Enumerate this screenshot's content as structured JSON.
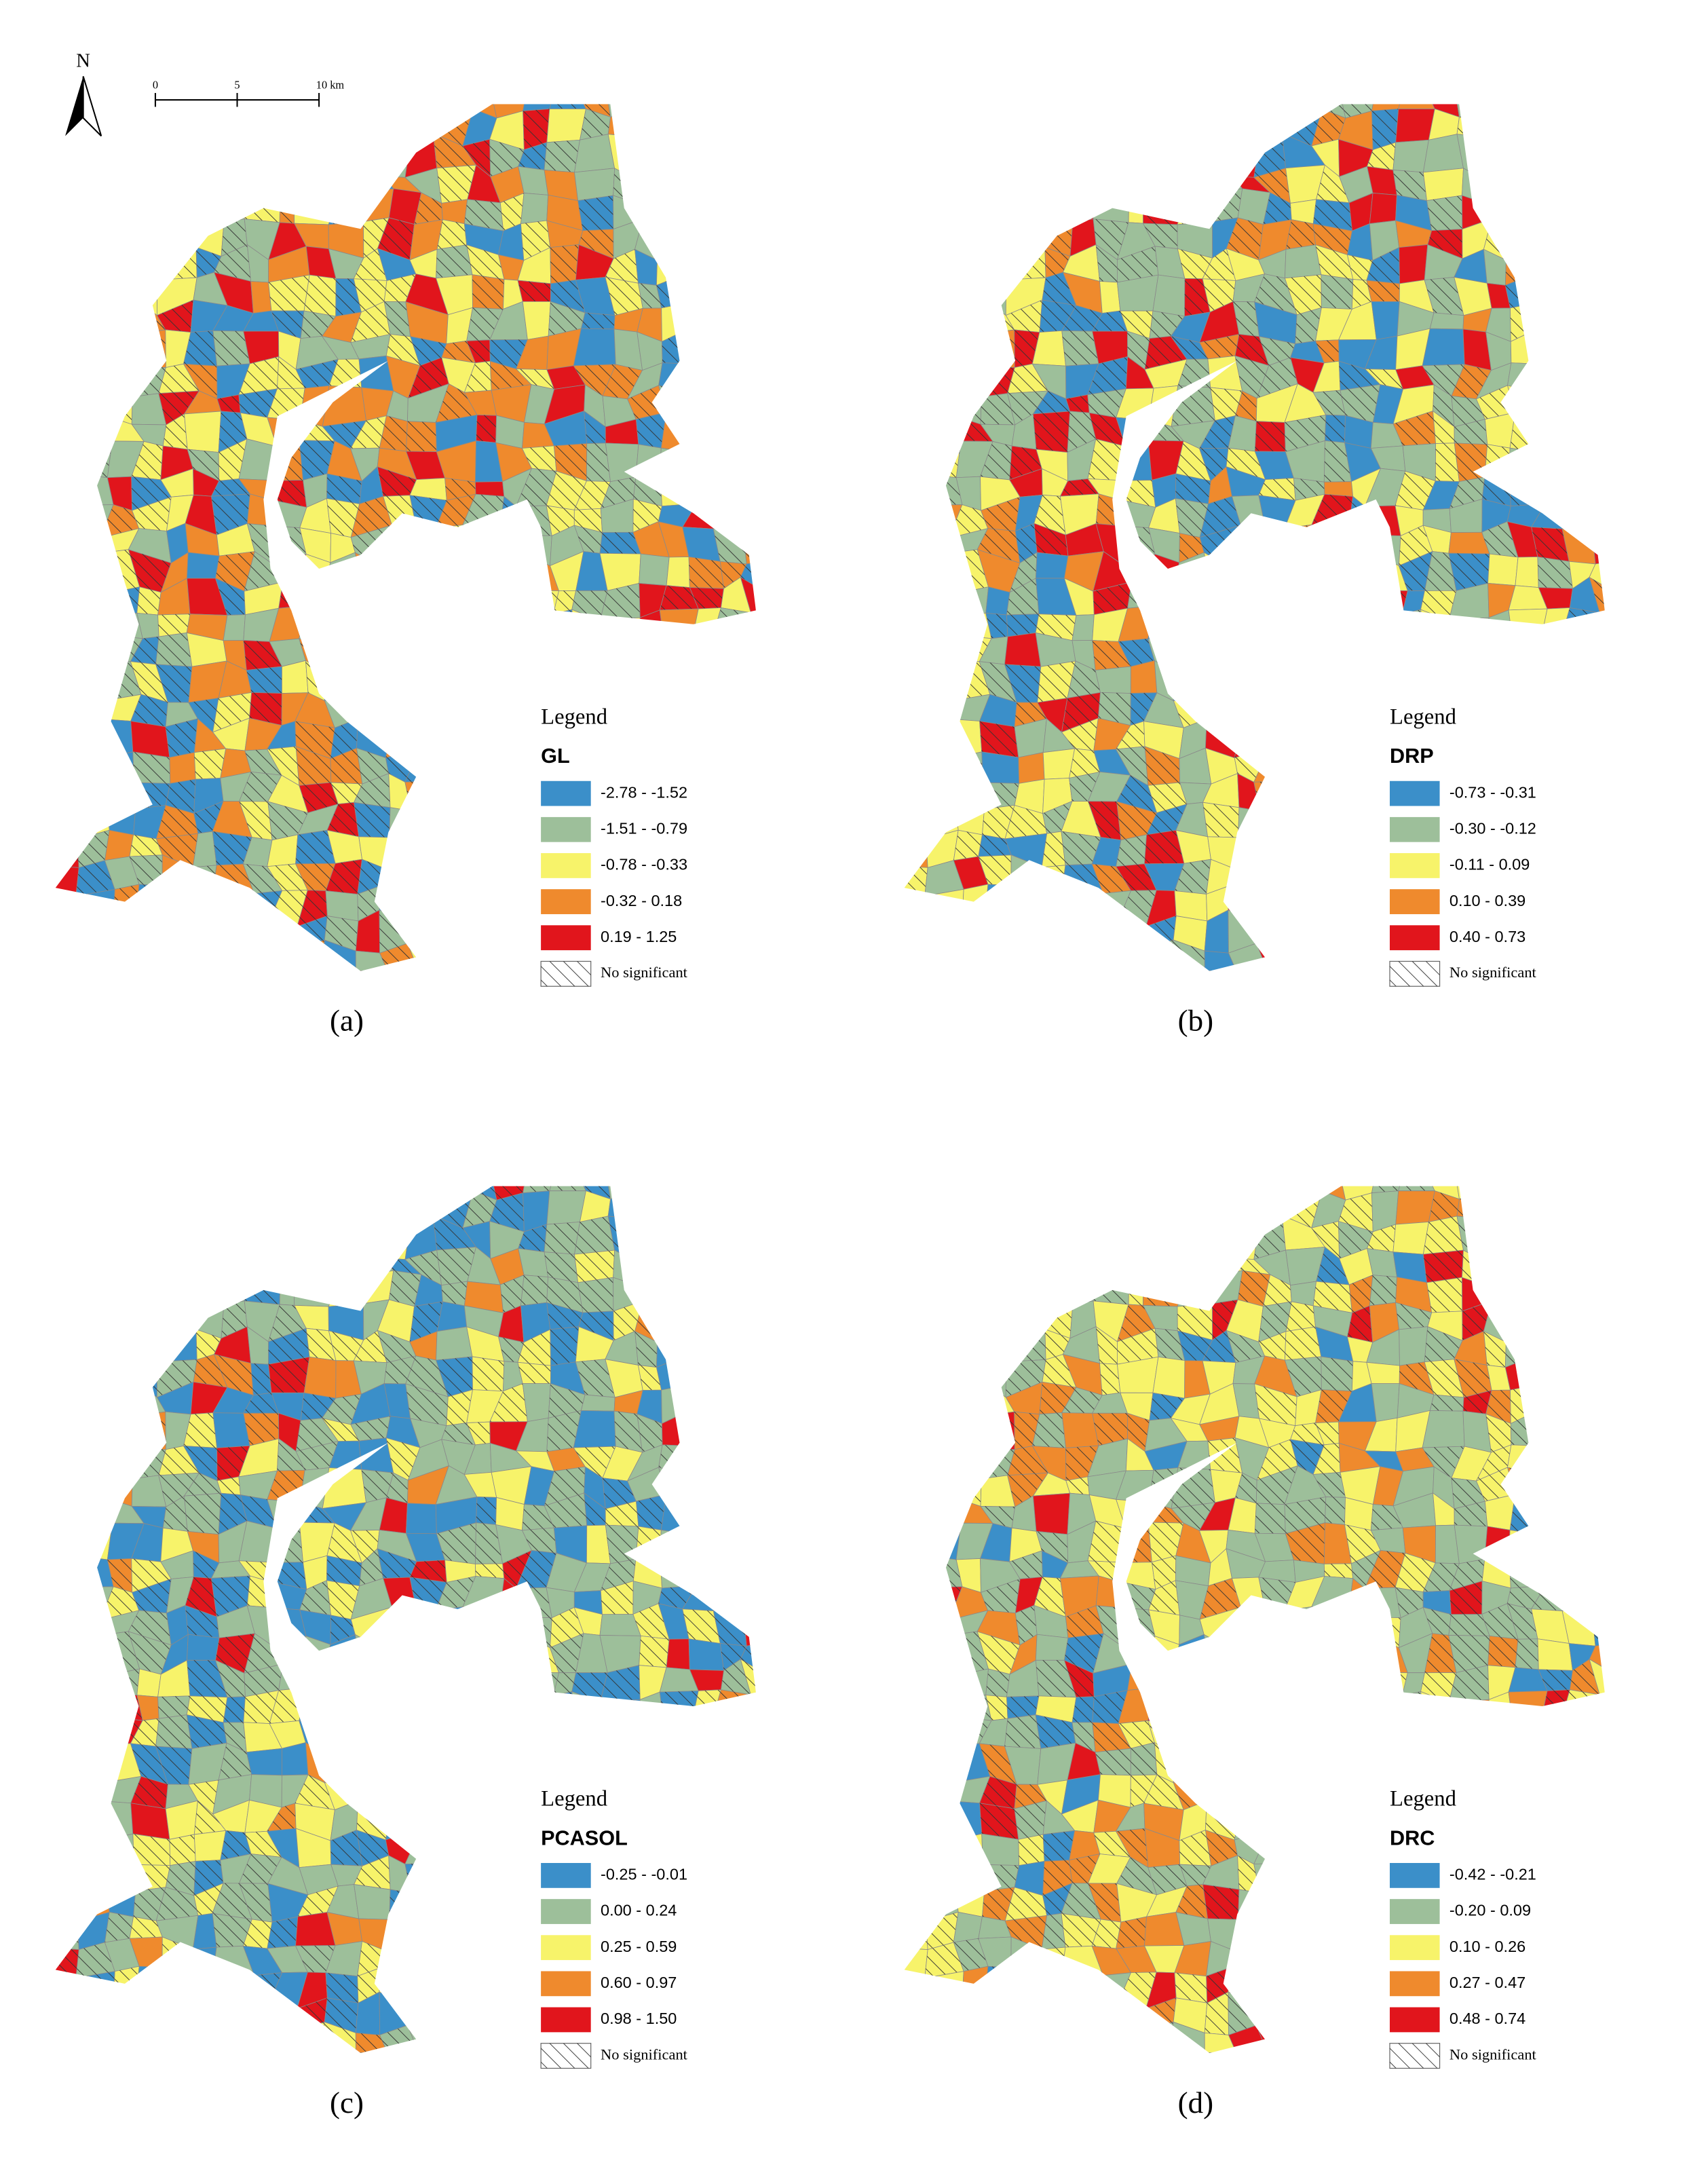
{
  "north": "N",
  "scale_bar": [
    "0",
    "5",
    "10 km"
  ],
  "panels": [
    {
      "caption": "(a)",
      "legend_title": "Legend",
      "variable": "GL",
      "no_significant": "No significant",
      "classes": [
        {
          "label": "-2.78 - -1.52",
          "color": "#3b8fc9"
        },
        {
          "label": "-1.51 - -0.79",
          "color": "#9dbf9a"
        },
        {
          "label": "-0.78 - -0.33",
          "color": "#f7f36a"
        },
        {
          "label": "-0.32 - 0.18",
          "color": "#ef8a2d"
        },
        {
          "label": "0.19 - 1.25",
          "color": "#e1151c"
        }
      ]
    },
    {
      "caption": "(b)",
      "legend_title": "Legend",
      "variable": "DRP",
      "no_significant": "No significant",
      "classes": [
        {
          "label": "-0.73 - -0.31",
          "color": "#3b8fc9"
        },
        {
          "label": "-0.30 - -0.12",
          "color": "#9dbf9a"
        },
        {
          "label": "-0.11 - 0.09",
          "color": "#f7f36a"
        },
        {
          "label": "0.10 - 0.39",
          "color": "#ef8a2d"
        },
        {
          "label": "0.40 - 0.73",
          "color": "#e1151c"
        }
      ]
    },
    {
      "caption": "(c)",
      "legend_title": "Legend",
      "variable": "PCASOL",
      "no_significant": "No significant",
      "classes": [
        {
          "label": "-0.25 - -0.01",
          "color": "#3b8fc9"
        },
        {
          "label": "0.00 - 0.24",
          "color": "#9dbf9a"
        },
        {
          "label": "0.25 - 0.59",
          "color": "#f7f36a"
        },
        {
          "label": "0.60 - 0.97",
          "color": "#ef8a2d"
        },
        {
          "label": "0.98 - 1.50",
          "color": "#e1151c"
        }
      ]
    },
    {
      "caption": "(d)",
      "legend_title": "Legend",
      "variable": "DRC",
      "no_significant": "No significant",
      "classes": [
        {
          "label": "-0.42 - -0.21",
          "color": "#3b8fc9"
        },
        {
          "label": "-0.20 - 0.09",
          "color": "#9dbf9a"
        },
        {
          "label": "0.10 - 0.26",
          "color": "#f7f36a"
        },
        {
          "label": "0.27 - 0.47",
          "color": "#ef8a2d"
        },
        {
          "label": "0.48 - 0.74",
          "color": "#e1151c"
        }
      ]
    }
  ]
}
